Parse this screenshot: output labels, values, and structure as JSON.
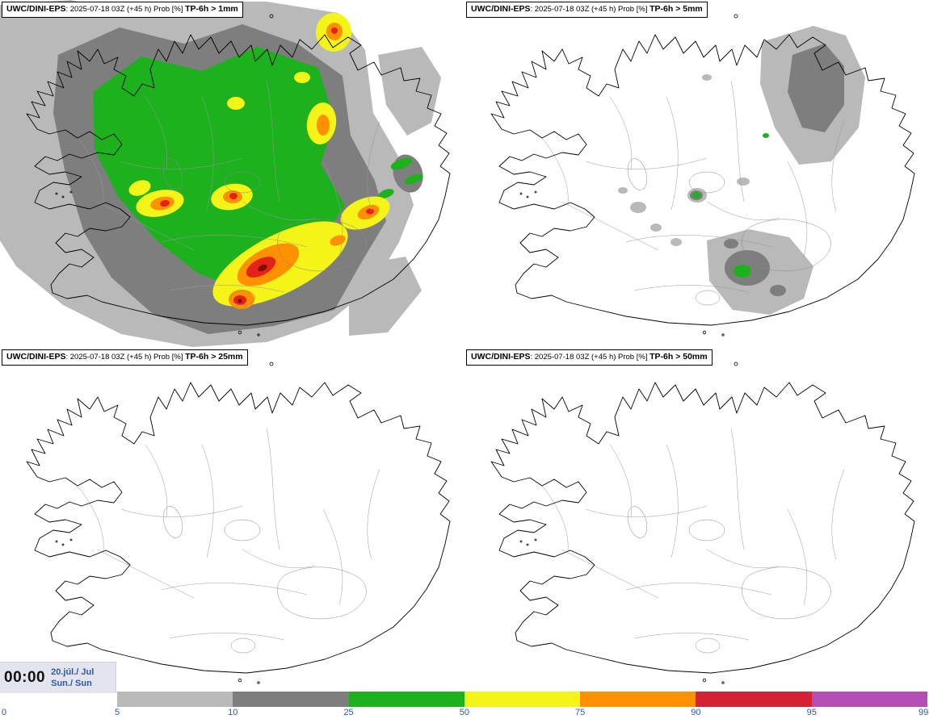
{
  "palette": {
    "light_gray": "#b9b9b9",
    "dark_gray": "#7e7e7e",
    "green": "#1db11d",
    "yellow": "#f4f418",
    "orange": "#ff9000",
    "red": "#e32219",
    "dark_red": "#7e0e00"
  },
  "panels": [
    {
      "model": "UWC/DINI-EPS",
      "runinfo": ": 2025-07-18 03Z (+45 h) Prob [%] ",
      "threshold": "TP-6h > 1mm"
    },
    {
      "model": "UWC/DINI-EPS",
      "runinfo": ": 2025-07-18 03Z (+45 h) Prob [%] ",
      "threshold": "TP-6h > 5mm"
    },
    {
      "model": "UWC/DINI-EPS",
      "runinfo": ": 2025-07-18 03Z (+45 h) Prob [%] ",
      "threshold": "TP-6h > 25mm"
    },
    {
      "model": "UWC/DINI-EPS",
      "runinfo": ": 2025-07-18 03Z (+45 h) Prob [%] ",
      "threshold": "TP-6h > 50mm"
    }
  ],
  "footer": {
    "time": "00:00",
    "date_line1": "20.júl./ Jul",
    "date_line2": "Sun./ Sun",
    "bg": "#e4e4ef"
  },
  "colorbar": {
    "ticks": [
      "0",
      "5",
      "10",
      "25",
      "50",
      "75",
      "90",
      "95",
      "99"
    ],
    "segment_colors": [
      "#b9b9b9",
      "#7e7e7e",
      "#1db11d",
      "#f4f418",
      "#ff9000",
      "#d42135",
      "#b44eb4"
    ],
    "label_color": "#2b59a8"
  }
}
